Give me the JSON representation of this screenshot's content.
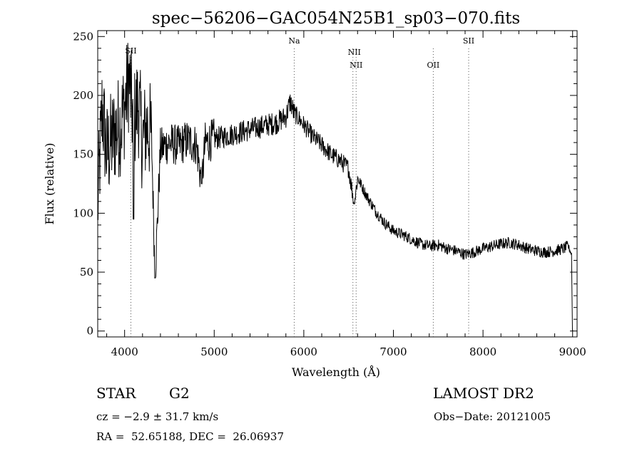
{
  "chart_data": {
    "type": "line",
    "title": "spec−56206−GAC054N25B1_sp03−070.fits",
    "xlabel": "Wavelength (Å)",
    "ylabel": "Flux (relative)",
    "xlim": [
      3700,
      9050
    ],
    "ylim": [
      -5,
      255
    ],
    "xticks": [
      4000,
      5000,
      6000,
      7000,
      8000,
      9000
    ],
    "yticks": [
      0,
      50,
      100,
      150,
      200,
      250
    ],
    "x_tick_labels": [
      "4000",
      "5000",
      "6000",
      "7000",
      "8000",
      "9000"
    ],
    "y_tick_labels": [
      "0",
      "50",
      "100",
      "150",
      "200",
      "250"
    ],
    "series": [
      {
        "x": [
          3700,
          3750,
          3800,
          3850,
          3900,
          3950,
          4000,
          4050,
          4100,
          4150,
          4200,
          4250,
          4300,
          4340,
          4400,
          4500,
          4600,
          4700,
          4800,
          4860,
          4900,
          5000,
          5100,
          5200,
          5300,
          5400,
          5500,
          5600,
          5700,
          5800,
          5850,
          5890,
          5950,
          6000,
          6100,
          6200,
          6300,
          6400,
          6500,
          6563,
          6600,
          6700,
          6800,
          6900,
          7000,
          7100,
          7200,
          7300,
          7400,
          7500,
          7600,
          7700,
          7800,
          7900,
          8000,
          8100,
          8200,
          8300,
          8400,
          8500,
          8600,
          8700,
          8800,
          8900,
          8950,
          8990,
          9000
        ],
        "y": [
          105,
          190,
          150,
          160,
          170,
          175,
          190,
          215,
          175,
          195,
          160,
          175,
          165,
          45,
          155,
          160,
          157,
          162,
          158,
          125,
          160,
          163,
          165,
          167,
          169,
          171,
          173,
          175,
          177,
          182,
          195,
          185,
          180,
          175,
          165,
          158,
          150,
          145,
          138,
          108,
          130,
          115,
          102,
          92,
          85,
          82,
          78,
          74,
          72,
          73,
          70,
          68,
          65,
          67,
          70,
          72,
          74,
          75,
          73,
          70,
          68,
          67,
          68,
          70,
          72,
          65,
          0
        ]
      }
    ],
    "lines": [
      {
        "label": "SII",
        "x": 4070
      },
      {
        "label": "Na",
        "x": 5893
      },
      {
        "label": "NII",
        "x": 6548
      },
      {
        "label": "NII",
        "x": 6584
      },
      {
        "label": "OII",
        "x": 7445
      },
      {
        "label": "SII",
        "x": 7840
      }
    ],
    "grid": false
  },
  "info": {
    "object": "STAR",
    "subclass": "G2",
    "survey": "LAMOST DR2",
    "cz": "cz = −2.9 ± 31.7 km/s",
    "obs_date": "Obs−Date: 20121005",
    "radec": "RA =  52.65188, DEC =  26.06937"
  }
}
